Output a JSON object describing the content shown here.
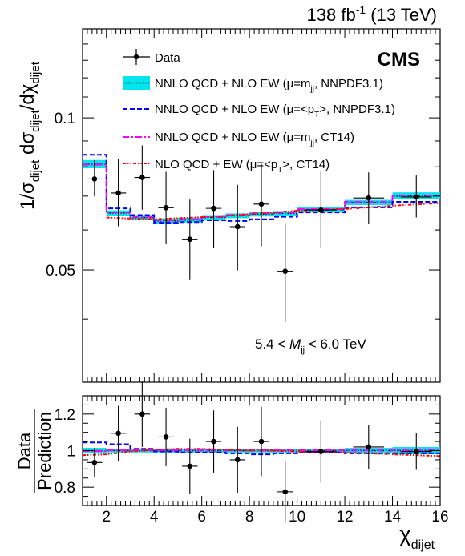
{
  "header": {
    "lumi_value": "138 fb",
    "lumi_exp": "-1",
    "energy": " (13 TeV)",
    "experiment": "CMS"
  },
  "top_axis": {
    "ylabel_main": "1/σ",
    "ylabel_sub1": "dijet",
    "ylabel_mid": " dσ",
    "ylabel_sub2": "dijet",
    "ylabel_mid2": "/dχ",
    "ylabel_sub3": "dijet",
    "tick_labels": [
      "0.1",
      "0.05"
    ]
  },
  "bottom_axis": {
    "ylabel_line1": "Data",
    "ylabel_line2": "Prediction",
    "tick_labels": [
      "1.2",
      "1",
      "0.8"
    ]
  },
  "x_axis": {
    "label_main": "χ",
    "label_sub": "dijet",
    "tick_labels": [
      "2",
      "4",
      "6",
      "8",
      "10",
      "12",
      "14",
      "16"
    ]
  },
  "annotation": {
    "mass_lo": "5.4 < ",
    "mass_var": "M",
    "mass_sub": "jj",
    "mass_hi": " < 6.0 TeV"
  },
  "legend": {
    "data": "Data",
    "nnpdf_mjj": [
      "NNLO QCD + NLO EW (μ=m",
      "jj",
      ", NNPDF3.1)"
    ],
    "nnpdf_pt": [
      "NNLO QCD + NLO EW (μ=<p",
      "T",
      ">, NNPDF3.1)"
    ],
    "ct14_mjj": [
      "NNLO QCD + NLO EW (μ=m",
      "jj",
      ", CT14)"
    ],
    "nlo_ct14": [
      "NLO QCD + EW (μ=<p",
      "T",
      ">, CT14)"
    ]
  },
  "colors": {
    "band": "#00e5ee",
    "nnpdf_mjj": "#000000",
    "nnpdf_pt": "#0000ff",
    "ct14_mjj": "#ff00ff",
    "nlo_ct14": "#ff0000",
    "data": "#000000"
  },
  "chart_data": [
    {
      "type": "line",
      "panel": "top",
      "title": "",
      "xlabel": "χdijet",
      "ylabel": "1/σdijet dσdijet/dχdijet",
      "xlim": [
        1,
        16
      ],
      "ylim": [
        0.03,
        0.15
      ],
      "log_y": true,
      "bin_edges": [
        1,
        2,
        3,
        4,
        5,
        6,
        7,
        8,
        9,
        10,
        12,
        14,
        16
      ],
      "series": [
        {
          "name": "Data",
          "style": "points",
          "x": [
            1.5,
            2.5,
            3.5,
            4.5,
            5.5,
            6.5,
            7.5,
            8.5,
            9.5,
            11,
            13,
            15
          ],
          "values": [
            0.0757,
            0.071,
            0.0762,
            0.0664,
            0.0575,
            0.0662,
            0.0609,
            0.0675,
            0.0497,
            0.0657,
            0.0694,
            0.0697
          ],
          "err_lo": [
            0.0058,
            0.01,
            0.0104,
            0.01,
            0.0096,
            0.0108,
            0.011,
            0.0118,
            0.0102,
            0.0104,
            0.0076,
            0.0062
          ],
          "err_hi": [
            0.0068,
            0.0118,
            0.012,
            0.0118,
            0.0114,
            0.0126,
            0.0128,
            0.0136,
            0.0122,
            0.0126,
            0.0086,
            0.0072
          ]
        },
        {
          "name": "NNLO QCD + NLO EW (μ=mjj, NNPDF3.1)",
          "style": "band-step",
          "values": [
            0.081,
            0.0648,
            0.0635,
            0.0625,
            0.0628,
            0.0635,
            0.064,
            0.0645,
            0.0647,
            0.0658,
            0.068,
            0.07
          ],
          "band_lo": [
            0.0795,
            0.064,
            0.0628,
            0.0618,
            0.0621,
            0.0628,
            0.0633,
            0.0638,
            0.064,
            0.0651,
            0.0672,
            0.069
          ],
          "band_hi": [
            0.0825,
            0.0656,
            0.0642,
            0.0632,
            0.0635,
            0.0642,
            0.0647,
            0.0652,
            0.0654,
            0.0665,
            0.0688,
            0.0712
          ]
        },
        {
          "name": "NNLO QCD + NLO EW (μ=<pT>, NNPDF3.1)",
          "style": "dashed-step",
          "values": [
            0.0845,
            0.0662,
            0.0642,
            0.062,
            0.0622,
            0.0627,
            0.0625,
            0.063,
            0.0637,
            0.065,
            0.0665,
            0.0682
          ]
        },
        {
          "name": "NNLO QCD + NLO EW (μ=mjj, CT14)",
          "style": "dashdot-step",
          "values": [
            0.0808,
            0.065,
            0.0637,
            0.0627,
            0.063,
            0.0637,
            0.0642,
            0.0647,
            0.0649,
            0.066,
            0.0682,
            0.0702
          ]
        },
        {
          "name": "NLO QCD + EW (μ=<pT>, CT14)",
          "style": "dotted",
          "x": [
            2,
            3,
            4,
            5,
            6,
            7,
            8,
            9,
            10,
            12,
            14,
            16
          ],
          "values": [
            0.0635,
            0.0632,
            0.063,
            0.0633,
            0.0636,
            0.064,
            0.0645,
            0.065,
            0.0655,
            0.066,
            0.067,
            0.0678
          ]
        }
      ]
    },
    {
      "type": "line",
      "panel": "ratio",
      "title": "",
      "xlabel": "χdijet",
      "ylabel": "Data/Prediction",
      "xlim": [
        1,
        16
      ],
      "ylim": [
        0.7,
        1.3
      ],
      "bin_edges": [
        1,
        2,
        3,
        4,
        5,
        6,
        7,
        8,
        9,
        10,
        12,
        14,
        16
      ],
      "series": [
        {
          "name": "Data",
          "style": "points",
          "x": [
            1.5,
            2.5,
            3.5,
            4.5,
            5.5,
            6.5,
            7.5,
            8.5,
            9.5,
            11,
            13,
            15
          ],
          "values": [
            0.935,
            1.095,
            1.2,
            1.075,
            0.915,
            1.05,
            0.95,
            1.05,
            0.775,
            0.995,
            1.02,
            0.995
          ],
          "err": [
            0.08,
            0.15,
            0.18,
            0.16,
            0.15,
            0.17,
            0.18,
            0.19,
            0.17,
            0.17,
            0.12,
            0.1
          ]
        },
        {
          "name": "NNLO QCD + NLO EW (μ=mjj, NNPDF3.1)",
          "style": "band-step",
          "values": [
            1,
            1,
            1,
            1,
            1,
            1,
            1,
            1,
            1,
            1,
            1,
            1
          ],
          "band_lo": [
            0.985,
            0.99,
            0.99,
            0.99,
            0.99,
            0.99,
            0.99,
            0.99,
            0.99,
            0.99,
            0.985,
            0.98
          ],
          "band_hi": [
            1.015,
            1.01,
            1.01,
            1.01,
            1.01,
            1.01,
            1.01,
            1.01,
            1.01,
            1.01,
            1.015,
            1.02
          ]
        },
        {
          "name": "NNLO QCD + NLO EW (μ=<pT>, NNPDF3.1)",
          "style": "dashed-step",
          "values": [
            1.045,
            1.035,
            1.01,
            0.995,
            0.99,
            0.99,
            0.985,
            0.98,
            0.985,
            0.99,
            0.985,
            0.985
          ]
        },
        {
          "name": "NNLO QCD + NLO EW (μ=mjj, CT14)",
          "style": "dashdot-step",
          "values": [
            0.998,
            1.003,
            1.003,
            1.003,
            1.003,
            1.003,
            1.003,
            1.003,
            1.003,
            1.003,
            1.003,
            1.003
          ]
        },
        {
          "name": "NLO QCD + EW (μ=<pT>, CT14)",
          "style": "dotted",
          "x": [
            1,
            2,
            3,
            4,
            5,
            6,
            7,
            8,
            9,
            10,
            12,
            14,
            16
          ],
          "values": [
            0.975,
            0.98,
            0.995,
            1.005,
            1.01,
            1.01,
            1.005,
            1.0,
            1.0,
            0.995,
            0.99,
            0.98,
            0.97
          ]
        }
      ]
    }
  ]
}
